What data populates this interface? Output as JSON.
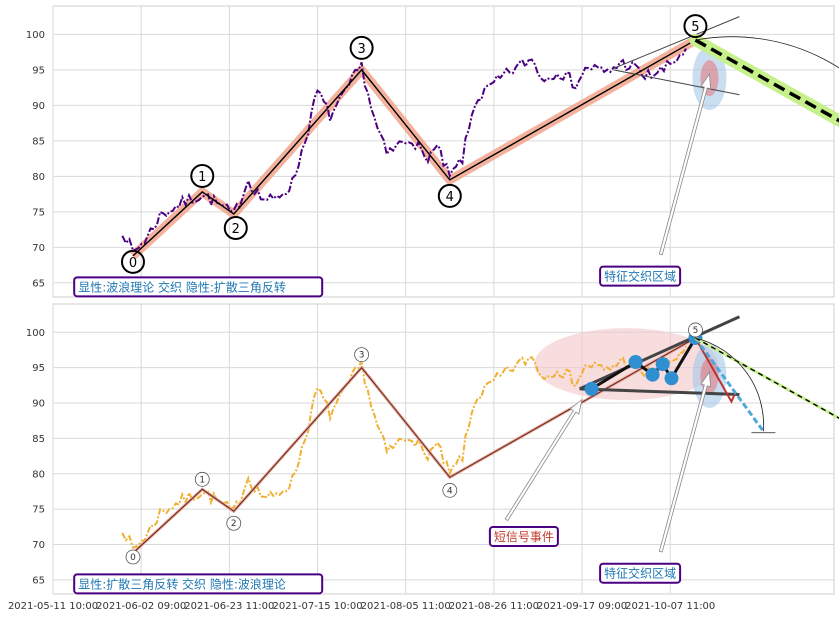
{
  "chart_data": [
    {
      "type": "line",
      "panel": "top",
      "legend_box": "显性:波浪理论 交织 隐性:扩散三角反转",
      "region_label": "特征交织区域",
      "ylim": [
        63,
        104
      ],
      "yticks": [
        65,
        70,
        75,
        80,
        85,
        90,
        95,
        100
      ],
      "price_color": "#4b0082",
      "wave_points": [
        {
          "label": "0",
          "x": 0.7,
          "y": 68.8
        },
        {
          "label": "1",
          "x": 11.7,
          "y": 77.8
        },
        {
          "label": "2",
          "x": 16.7,
          "y": 74.7
        },
        {
          "label": "3",
          "x": 37.0,
          "y": 95.0
        },
        {
          "label": "4",
          "x": 51.0,
          "y": 79.5
        },
        {
          "label": "5",
          "x": 90.0,
          "y": 99.2
        }
      ],
      "projection": {
        "from": [
          90.0,
          99.2
        ],
        "to": [
          123.0,
          82.8
        ]
      }
    },
    {
      "type": "line",
      "panel": "bottom",
      "legend_box": "显性:扩散三角反转 交织 隐性:波浪理论",
      "region_label": "特征交织区域",
      "event_label": "短信号事件",
      "ylim": [
        63,
        104
      ],
      "yticks": [
        65,
        70,
        75,
        80,
        85,
        90,
        95,
        100
      ],
      "price_color": "#f0b030",
      "wave_points": [
        {
          "label": "0",
          "x": 0.7,
          "y": 68.8
        },
        {
          "label": "1",
          "x": 11.7,
          "y": 77.8
        },
        {
          "label": "2",
          "x": 16.7,
          "y": 74.7
        },
        {
          "label": "3",
          "x": 37.0,
          "y": 95.0
        },
        {
          "label": "4",
          "x": 51.0,
          "y": 79.5
        },
        {
          "label": "5",
          "x": 90.0,
          "y": 99.2
        }
      ],
      "triangle_points": [
        {
          "x": 80.5,
          "y": 95.8
        },
        {
          "x": 83.2,
          "y": 94.0
        },
        {
          "x": 84.8,
          "y": 95.5
        },
        {
          "x": 86.2,
          "y": 93.5
        },
        {
          "x": 90.0,
          "y": 99.2
        }
      ],
      "projection": {
        "from": [
          90.0,
          99.2
        ],
        "to": [
          123.0,
          82.8
        ]
      }
    }
  ],
  "x_axis": {
    "ticks": [
      {
        "x": -12,
        "label": "2021-05-11 10:00"
      },
      {
        "x": 2,
        "label": "2021-06-02 09:00"
      },
      {
        "x": 16,
        "label": "2021-06-23 11:00"
      },
      {
        "x": 30,
        "label": "2021-07-15 10:00"
      },
      {
        "x": 44,
        "label": "2021-08-05 11:00"
      },
      {
        "x": 58,
        "label": "2021-08-26 11:00"
      },
      {
        "x": 72,
        "label": "2021-09-17 09:00"
      },
      {
        "x": 86,
        "label": "2021-10-07 11:00"
      }
    ],
    "xlim": [
      -12,
      112
    ]
  }
}
